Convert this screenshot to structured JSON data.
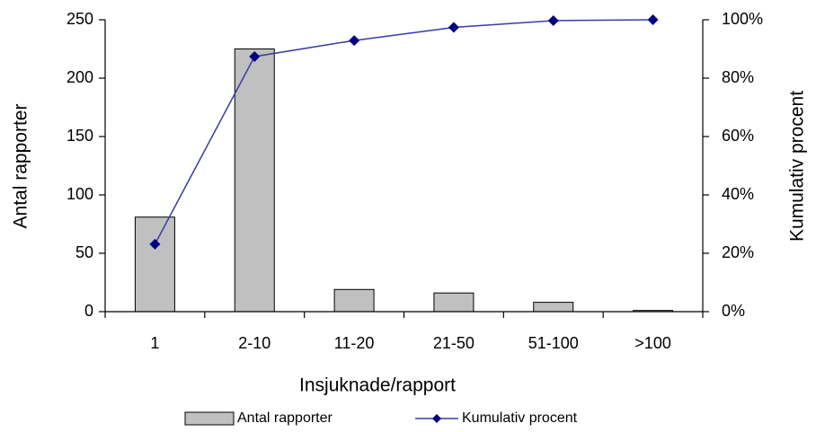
{
  "chart_data": {
    "type": "pareto",
    "x_label": "Insjuknade/rapport",
    "y_label": "Antal rapporter",
    "y2_label": "Kumulativ procent",
    "categories": [
      "1",
      "2-10",
      "11-20",
      "21-50",
      "51-100",
      ">100"
    ],
    "series": [
      {
        "name": "Antal rapporter",
        "type": "bar",
        "color": "#c0c0c0",
        "values": [
          81,
          225,
          19,
          16,
          8,
          1
        ]
      },
      {
        "name": "Kumulativ procent",
        "type": "line",
        "axis": "y2",
        "color": "#3a3aa8",
        "marker_color": "#000080",
        "values": [
          23.1,
          87.4,
          92.9,
          97.4,
          99.7,
          100
        ]
      }
    ],
    "ylim": [
      0,
      250
    ],
    "yticks": [
      0,
      50,
      100,
      150,
      200,
      250
    ],
    "y2lim": [
      0,
      100
    ],
    "y2ticks": [
      {
        "value": 0,
        "label": "0%"
      },
      {
        "value": 20,
        "label": "20%"
      },
      {
        "value": 40,
        "label": "40%"
      },
      {
        "value": 60,
        "label": "60%"
      },
      {
        "value": 80,
        "label": "80%"
      },
      {
        "value": 100,
        "label": "100%"
      }
    ],
    "legend": "bottom"
  }
}
